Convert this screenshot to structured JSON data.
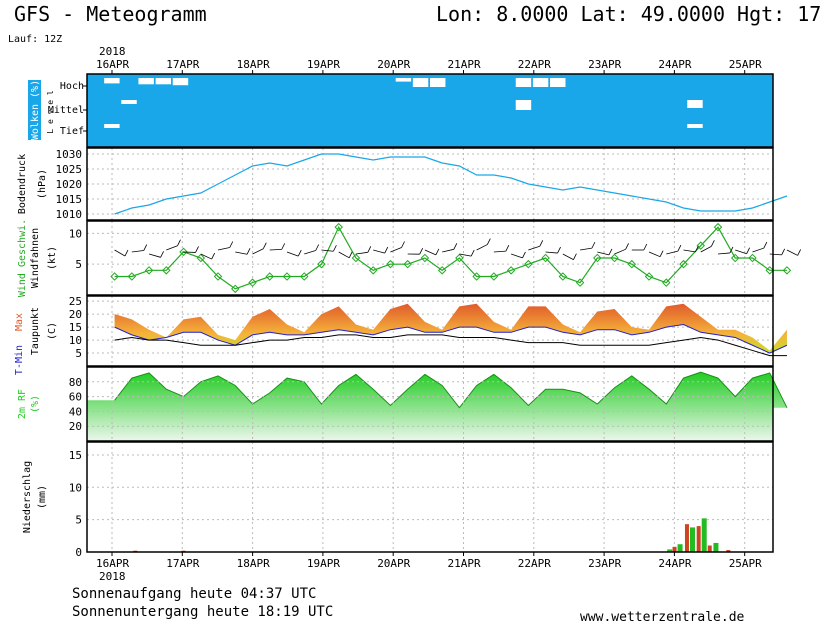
{
  "header": {
    "title": "GFS - Meteogramm",
    "coords": "Lon: 8.0000 Lat: 49.0000 Hgt: 17",
    "run": "Lauf: 12Z",
    "year": "2018"
  },
  "footer": {
    "sunrise": "Sonnenaufgang heute 04:37 UTC",
    "sunset": "Sonnenuntergang heute 18:19 UTC",
    "site": "www.wetterzentrale.de"
  },
  "colors": {
    "cloud_bg": "#1aa7ea",
    "pressure_line": "#1aa7ea",
    "wind_speed": "#22aa22",
    "wind_barbs": "#000000",
    "tmax_fill": "#e05b2b",
    "tmin_line": "#2222cc",
    "dewpoint_line": "#000000",
    "rh_fill": "#22cc22",
    "precip_rain": "#22bb22",
    "precip_conv": "#cc4422"
  },
  "chart_data": [
    {
      "type": "heatmap",
      "name_label": "Wolken (%)",
      "sub_label": "L e v e l",
      "levels": [
        "Hoch",
        "Mittel",
        "Tief"
      ],
      "x_ticks": [
        "16APR",
        "17APR",
        "18APR",
        "19APR",
        "20APR",
        "21APR",
        "22APR",
        "23APR",
        "24APR",
        "25APR"
      ],
      "cloud_high_pct": [
        100,
        40,
        100,
        30,
        30,
        20,
        100,
        100,
        100,
        100,
        100,
        100,
        100,
        100,
        100,
        100,
        100,
        100,
        60,
        0,
        0,
        100,
        100,
        100,
        100,
        0,
        0,
        0,
        100,
        100,
        100,
        100,
        100,
        100,
        100,
        100,
        100,
        100,
        100,
        100
      ],
      "cloud_mid_pct": [
        100,
        100,
        60,
        100,
        100,
        100,
        100,
        100,
        100,
        100,
        100,
        100,
        100,
        100,
        100,
        100,
        100,
        100,
        100,
        100,
        100,
        100,
        100,
        100,
        100,
        0,
        100,
        100,
        100,
        100,
        100,
        100,
        100,
        100,
        100,
        20,
        100,
        100,
        100,
        100
      ],
      "cloud_low_pct": [
        100,
        60,
        100,
        100,
        100,
        100,
        100,
        100,
        100,
        100,
        100,
        100,
        100,
        100,
        100,
        100,
        100,
        100,
        100,
        100,
        100,
        100,
        100,
        100,
        100,
        100,
        100,
        100,
        100,
        100,
        100,
        100,
        100,
        100,
        100,
        60,
        100,
        100,
        100,
        100
      ]
    },
    {
      "type": "line",
      "ylabel": "Bodendruck",
      "unit": "(hPa)",
      "ylim": [
        1008,
        1032
      ],
      "y_ticks": [
        1010,
        1015,
        1020,
        1025,
        1030
      ],
      "x_days": [
        0,
        0.25,
        0.5,
        0.75,
        1,
        1.25,
        1.5,
        1.75,
        2,
        2.25,
        2.5,
        2.75,
        3,
        3.25,
        3.5,
        3.75,
        4,
        4.25,
        4.5,
        4.75,
        5,
        5.25,
        5.5,
        5.75,
        6,
        6.25,
        6.5,
        6.75,
        7,
        7.25,
        7.5,
        7.75,
        8,
        8.25,
        8.5,
        8.75,
        9,
        9.25,
        9.5,
        9.75
      ],
      "values": [
        1010,
        1012,
        1013,
        1015,
        1016,
        1017,
        1020,
        1023,
        1026,
        1027,
        1026,
        1028,
        1030,
        1030,
        1029,
        1028,
        1029,
        1029,
        1029,
        1027,
        1026,
        1023,
        1023,
        1022,
        1020,
        1019,
        1018,
        1019,
        1018,
        1017,
        1016,
        1015,
        1014,
        1012,
        1011,
        1011,
        1011,
        1012,
        1014,
        1016
      ]
    },
    {
      "type": "line",
      "ylabel_a": "Wind Geschwi.",
      "ylabel_b": "Windfahnen",
      "unit": "(kt)",
      "ylim": [
        0,
        12
      ],
      "y_ticks": [
        5,
        10
      ],
      "x_days": [
        0,
        0.25,
        0.5,
        0.75,
        1,
        1.25,
        1.5,
        1.75,
        2,
        2.25,
        2.5,
        2.75,
        3,
        3.25,
        3.5,
        3.75,
        4,
        4.25,
        4.5,
        4.75,
        5,
        5.25,
        5.5,
        5.75,
        6,
        6.25,
        6.5,
        6.75,
        7,
        7.25,
        7.5,
        7.75,
        8,
        8.25,
        8.5,
        8.75,
        9,
        9.25,
        9.5,
        9.75
      ],
      "values": [
        3,
        3,
        4,
        4,
        7,
        6,
        3,
        1,
        2,
        3,
        3,
        3,
        5,
        11,
        6,
        4,
        5,
        5,
        6,
        4,
        6,
        3,
        3,
        4,
        5,
        6,
        3,
        2,
        6,
        6,
        5,
        3,
        2,
        5,
        8,
        11,
        6,
        6,
        4,
        4
      ]
    },
    {
      "type": "line",
      "ylabel_a": "T-Min",
      "ylabel_b": "Max",
      "ylabel_c": "Taupunkt",
      "unit": "(C)",
      "ylim": [
        0,
        27
      ],
      "y_ticks": [
        5,
        10,
        15,
        20,
        25
      ],
      "x_days": [
        0,
        0.25,
        0.5,
        0.75,
        1,
        1.25,
        1.5,
        1.75,
        2,
        2.25,
        2.5,
        2.75,
        3,
        3.25,
        3.5,
        3.75,
        4,
        4.25,
        4.5,
        4.75,
        5,
        5.25,
        5.5,
        5.75,
        6,
        6.25,
        6.5,
        6.75,
        7,
        7.25,
        7.5,
        7.75,
        8,
        8.25,
        8.5,
        8.75,
        9,
        9.25,
        9.5,
        9.75
      ],
      "series": [
        {
          "name": "Max",
          "values": [
            20,
            18,
            14,
            11,
            18,
            19,
            12,
            10,
            19,
            22,
            16,
            13,
            20,
            23,
            16,
            14,
            22,
            24,
            17,
            14,
            23,
            24,
            17,
            14,
            23,
            23,
            16,
            13,
            21,
            22,
            15,
            14,
            23,
            24,
            19,
            14,
            14,
            11,
            6,
            14
          ]
        },
        {
          "name": "Min",
          "values": [
            15,
            12,
            10,
            11,
            13,
            13,
            10,
            8,
            12,
            13,
            12,
            12,
            13,
            14,
            13,
            12,
            14,
            15,
            13,
            13,
            15,
            15,
            13,
            13,
            15,
            15,
            13,
            12,
            14,
            14,
            12,
            13,
            15,
            16,
            13,
            12,
            11,
            8,
            5,
            8
          ]
        },
        {
          "name": "Taupunkt",
          "values": [
            10,
            11,
            10,
            10,
            9,
            8,
            8,
            8,
            9,
            10,
            10,
            11,
            11,
            12,
            12,
            11,
            11,
            12,
            12,
            12,
            11,
            11,
            11,
            10,
            9,
            9,
            9,
            8,
            8,
            8,
            8,
            8,
            9,
            10,
            11,
            10,
            8,
            6,
            4,
            4
          ]
        }
      ]
    },
    {
      "type": "area",
      "ylabel": "2m RF",
      "unit": "(%)",
      "ylim": [
        0,
        100
      ],
      "y_ticks": [
        20,
        40,
        60,
        80
      ],
      "x_days": [
        0,
        0.25,
        0.5,
        0.75,
        1,
        1.25,
        1.5,
        1.75,
        2,
        2.25,
        2.5,
        2.75,
        3,
        3.25,
        3.5,
        3.75,
        4,
        4.25,
        4.5,
        4.75,
        5,
        5.25,
        5.5,
        5.75,
        6,
        6.25,
        6.5,
        6.75,
        7,
        7.25,
        7.5,
        7.75,
        8,
        8.25,
        8.5,
        8.75,
        9,
        9.25,
        9.5,
        9.75
      ],
      "values": [
        55,
        85,
        92,
        70,
        60,
        80,
        88,
        75,
        50,
        65,
        85,
        80,
        50,
        75,
        90,
        70,
        48,
        70,
        90,
        75,
        45,
        75,
        90,
        72,
        48,
        70,
        70,
        65,
        50,
        72,
        88,
        70,
        50,
        85,
        93,
        85,
        60,
        85,
        92,
        45
      ]
    },
    {
      "type": "bar",
      "ylabel": "Niederschlag",
      "unit": "(mm)",
      "ylim": [
        0,
        17
      ],
      "y_ticks": [
        0,
        5,
        10,
        15
      ],
      "bars_rain": [
        {
          "x": 8.05,
          "value": 0.4
        },
        {
          "x": 8.2,
          "value": 1.2
        },
        {
          "x": 8.38,
          "value": 3.8
        },
        {
          "x": 8.55,
          "value": 5.2
        },
        {
          "x": 8.72,
          "value": 1.4
        }
      ],
      "bars_conv": [
        {
          "x": 0.3,
          "value": 0.2
        },
        {
          "x": 1.0,
          "value": 0.2
        },
        {
          "x": 8.12,
          "value": 0.8
        },
        {
          "x": 8.3,
          "value": 4.3
        },
        {
          "x": 8.47,
          "value": 4.0
        },
        {
          "x": 8.63,
          "value": 1.0
        },
        {
          "x": 8.9,
          "value": 0.3
        }
      ]
    }
  ]
}
